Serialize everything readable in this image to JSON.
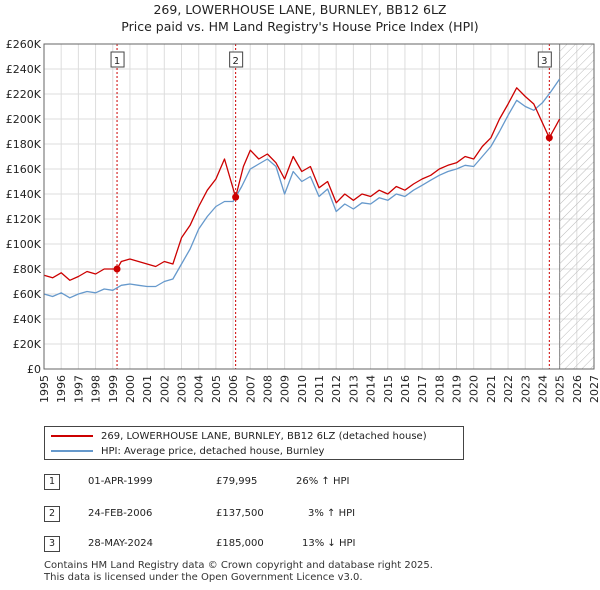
{
  "title_line1": "269, LOWERHOUSE LANE, BURNLEY, BB12 6LZ",
  "title_line2": "Price paid vs. HM Land Registry's House Price Index (HPI)",
  "colors": {
    "property": "#cc0000",
    "hpi": "#6699cc",
    "grid": "#dddddd",
    "marker_line": "#cc0000"
  },
  "chart_data": {
    "type": "line",
    "title": "Price paid vs. HM Land Registry's House Price Index (HPI)",
    "xlabel": "",
    "ylabel": "",
    "xlim": [
      1995,
      2027
    ],
    "ylim": [
      0,
      260000
    ],
    "y_ticks": [
      {
        "v": 0,
        "label": "£0"
      },
      {
        "v": 20000,
        "label": "£20K"
      },
      {
        "v": 40000,
        "label": "£40K"
      },
      {
        "v": 60000,
        "label": "£60K"
      },
      {
        "v": 80000,
        "label": "£80K"
      },
      {
        "v": 100000,
        "label": "£100K"
      },
      {
        "v": 120000,
        "label": "£120K"
      },
      {
        "v": 140000,
        "label": "£140K"
      },
      {
        "v": 160000,
        "label": "£160K"
      },
      {
        "v": 180000,
        "label": "£180K"
      },
      {
        "v": 200000,
        "label": "£200K"
      },
      {
        "v": 220000,
        "label": "£220K"
      },
      {
        "v": 240000,
        "label": "£240K"
      },
      {
        "v": 260000,
        "label": "£260K"
      }
    ],
    "x_ticks": [
      "1995",
      "1996",
      "1997",
      "1998",
      "1999",
      "2000",
      "2001",
      "2002",
      "2003",
      "2004",
      "2005",
      "2006",
      "2007",
      "2008",
      "2009",
      "2010",
      "2011",
      "2012",
      "2013",
      "2014",
      "2015",
      "2016",
      "2017",
      "2018",
      "2019",
      "2020",
      "2021",
      "2022",
      "2023",
      "2024",
      "2025",
      "2026",
      "2027"
    ],
    "projection_start": 2025.0,
    "series": [
      {
        "name": "269, LOWERHOUSE LANE, BURNLEY, BB12 6LZ (detached house)",
        "x": [
          1995,
          1995.5,
          1996,
          1996.5,
          1997,
          1997.5,
          1998,
          1998.5,
          1999.25,
          1999.5,
          2000,
          2000.5,
          2001,
          2001.5,
          2002,
          2002.5,
          2003,
          2003.5,
          2004,
          2004.5,
          2005,
          2005.5,
          2006.15,
          2006.6,
          2007,
          2007.5,
          2008,
          2008.5,
          2009,
          2009.5,
          2010,
          2010.5,
          2011,
          2011.5,
          2012,
          2012.5,
          2013,
          2013.5,
          2014,
          2014.5,
          2015,
          2015.5,
          2016,
          2016.5,
          2017,
          2017.5,
          2018,
          2018.5,
          2019,
          2019.5,
          2020,
          2020.5,
          2021,
          2021.5,
          2022,
          2022.5,
          2023,
          2023.5,
          2024.4,
          2024.8,
          2025.0
        ],
        "values": [
          75000,
          73000,
          77000,
          71000,
          74000,
          78000,
          76000,
          80000,
          79995,
          86000,
          88000,
          86000,
          84000,
          82000,
          86000,
          84000,
          105000,
          115000,
          130000,
          143000,
          152000,
          168000,
          137500,
          162000,
          175000,
          168000,
          172000,
          165000,
          152000,
          170000,
          158000,
          162000,
          145000,
          150000,
          133000,
          140000,
          135000,
          140000,
          138000,
          143000,
          140000,
          146000,
          143000,
          148000,
          152000,
          155000,
          160000,
          163000,
          165000,
          170000,
          168000,
          178000,
          185000,
          200000,
          212000,
          225000,
          218000,
          212000,
          185000,
          195000,
          200000
        ]
      },
      {
        "name": "HPI: Average price, detached house, Burnley",
        "x": [
          1995,
          1995.5,
          1996,
          1996.5,
          1997,
          1997.5,
          1998,
          1998.5,
          1999,
          1999.5,
          2000,
          2000.5,
          2001,
          2001.5,
          2002,
          2002.5,
          2003,
          2003.5,
          2004,
          2004.5,
          2005,
          2005.5,
          2006,
          2006.5,
          2007,
          2007.5,
          2008,
          2008.5,
          2009,
          2009.5,
          2010,
          2010.5,
          2011,
          2011.5,
          2012,
          2012.5,
          2013,
          2013.5,
          2014,
          2014.5,
          2015,
          2015.5,
          2016,
          2016.5,
          2017,
          2017.5,
          2018,
          2018.5,
          2019,
          2019.5,
          2020,
          2020.5,
          2021,
          2021.5,
          2022,
          2022.5,
          2023,
          2023.5,
          2024,
          2024.5,
          2025.0
        ],
        "values": [
          60000,
          58000,
          61000,
          57000,
          60000,
          62000,
          61000,
          64000,
          63000,
          67000,
          68000,
          67000,
          66000,
          66000,
          70000,
          72000,
          84000,
          96000,
          112000,
          122000,
          130000,
          134000,
          134000,
          146000,
          160000,
          164000,
          168000,
          162000,
          140000,
          158000,
          150000,
          154000,
          138000,
          144000,
          126000,
          132000,
          128000,
          133000,
          132000,
          137000,
          135000,
          140000,
          138000,
          143000,
          147000,
          151000,
          155000,
          158000,
          160000,
          163000,
          162000,
          170000,
          178000,
          190000,
          203000,
          215000,
          210000,
          207000,
          213000,
          222000,
          232000
        ]
      }
    ],
    "annotations": [
      {
        "label": "1",
        "x": 1999.25,
        "value": 79995
      },
      {
        "label": "2",
        "x": 2006.15,
        "value": 137500
      },
      {
        "label": "3",
        "x": 2024.4,
        "value": 185000
      }
    ]
  },
  "legend": {
    "property_label": "269, LOWERHOUSE LANE, BURNLEY, BB12 6LZ (detached house)",
    "hpi_label": "HPI: Average price, detached house, Burnley"
  },
  "sales": [
    {
      "num": "1",
      "date": "01-APR-1999",
      "price": "£79,995",
      "hpi": "26% ↑ HPI"
    },
    {
      "num": "2",
      "date": "24-FEB-2006",
      "price": "£137,500",
      "hpi": "3% ↑ HPI"
    },
    {
      "num": "3",
      "date": "28-MAY-2024",
      "price": "£185,000",
      "hpi": "13% ↓ HPI"
    }
  ],
  "footer": {
    "line1": "Contains HM Land Registry data © Crown copyright and database right 2025.",
    "line2": "This data is licensed under the Open Government Licence v3.0."
  }
}
